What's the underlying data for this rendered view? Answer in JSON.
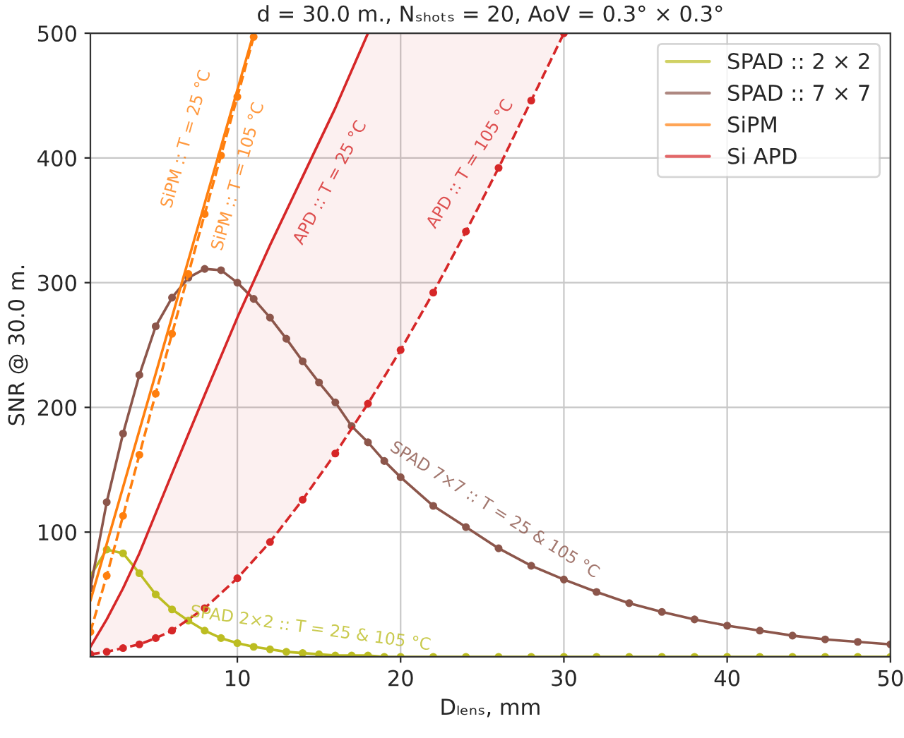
{
  "chart_data": {
    "type": "line",
    "title": "d = 30.0 m., Nₛₕₒₜₛ = 20, AoV = 0.3° × 0.3°",
    "xlabel": "Dₗₑₙₛ, mm",
    "ylabel": "SNR @ 30.0 m.",
    "xlim": [
      1,
      50
    ],
    "ylim": [
      0,
      500
    ],
    "xticks": [
      10,
      20,
      30,
      40,
      50
    ],
    "yticks": [
      100,
      200,
      300,
      400,
      500
    ],
    "grid": true,
    "legend": "top right",
    "series": [
      {
        "name": "SPAD :: 2 × 2",
        "color": "#bcbd22",
        "marker": "circle",
        "line_style": "solid",
        "x": [
          1,
          2,
          3,
          4,
          5,
          6,
          7,
          8,
          9,
          10,
          11,
          12,
          13,
          14,
          15,
          16,
          17,
          18,
          19,
          20,
          22,
          24,
          26,
          28,
          30,
          32,
          34,
          36,
          38,
          40,
          42,
          44,
          46,
          48,
          50
        ],
        "values": [
          65,
          86,
          83,
          67,
          50,
          38,
          29,
          21,
          15,
          11,
          8,
          6,
          4,
          3,
          2,
          1,
          1,
          1,
          0,
          0,
          0,
          0,
          0,
          0,
          0,
          0,
          0,
          0,
          0,
          0,
          0,
          0,
          0,
          0,
          0
        ]
      },
      {
        "name": "SPAD :: 7 × 7",
        "color": "#8c564b",
        "marker": "circle",
        "line_style": "solid",
        "x": [
          1,
          2,
          3,
          4,
          5,
          6,
          7,
          8,
          9,
          10,
          11,
          12,
          13,
          14,
          15,
          16,
          17,
          18,
          19,
          20,
          22,
          24,
          26,
          28,
          30,
          32,
          34,
          36,
          38,
          40,
          42,
          44,
          46,
          48,
          50
        ],
        "values": [
          55,
          124,
          179,
          226,
          265,
          288,
          304,
          311,
          310,
          300,
          287,
          272,
          255,
          237,
          220,
          204,
          185,
          172,
          157,
          144,
          121,
          104,
          87,
          73,
          62,
          52,
          43,
          36,
          30,
          25,
          21,
          17,
          14,
          12,
          10
        ]
      },
      {
        "name": "SiPM",
        "color": "#ff7f0e",
        "marker": "none",
        "line_style": "solid",
        "x": [
          1,
          11
        ],
        "values": [
          45,
          500
        ]
      },
      {
        "color": "#ff7f0e",
        "marker": "circle",
        "line_style": "dashed",
        "x": [
          1,
          2,
          3,
          4,
          5,
          6,
          7,
          8,
          9,
          10,
          11
        ],
        "values": [
          20,
          65,
          113,
          162,
          211,
          259,
          307,
          355,
          402,
          449,
          497
        ]
      },
      {
        "name": "Si APD",
        "color": "#d62728",
        "marker": "none",
        "line_style": "solid",
        "x": [
          1,
          2,
          3,
          4,
          5,
          6,
          8,
          10,
          12,
          14,
          16,
          18
        ],
        "values": [
          8,
          30,
          55,
          83,
          115,
          147,
          210,
          272,
          330,
          385,
          440,
          500
        ]
      },
      {
        "color": "#d62728",
        "marker": "circle",
        "line_style": "dashed",
        "x": [
          1,
          2,
          3,
          4,
          5,
          6,
          8,
          10,
          12,
          14,
          16,
          18,
          20,
          22,
          24,
          26,
          28,
          30
        ],
        "values": [
          2,
          4,
          7,
          10,
          15,
          21,
          39,
          63,
          92,
          126,
          163,
          203,
          246,
          292,
          341,
          392,
          446,
          500
        ],
        "lower": [
          2,
          4,
          7,
          10,
          15,
          21,
          39,
          63,
          92,
          126,
          163,
          203,
          246,
          292,
          341,
          392,
          446,
          500
        ],
        "upper": [
          8,
          30,
          55,
          83,
          115,
          147,
          210,
          272,
          330,
          385,
          440,
          500,
          500,
          500,
          500,
          500,
          500,
          500
        ]
      }
    ],
    "annotations": [
      "SiPM :: T = 25 °C",
      "SiPM :: T = 105 °C",
      "APD :: T = 25 °C",
      "APD :: T = 105 °C",
      "SPAD 7×7 :: T = 25 & 105 °C",
      "SPAD 2×2 :: T = 25 & 105 °C"
    ]
  }
}
